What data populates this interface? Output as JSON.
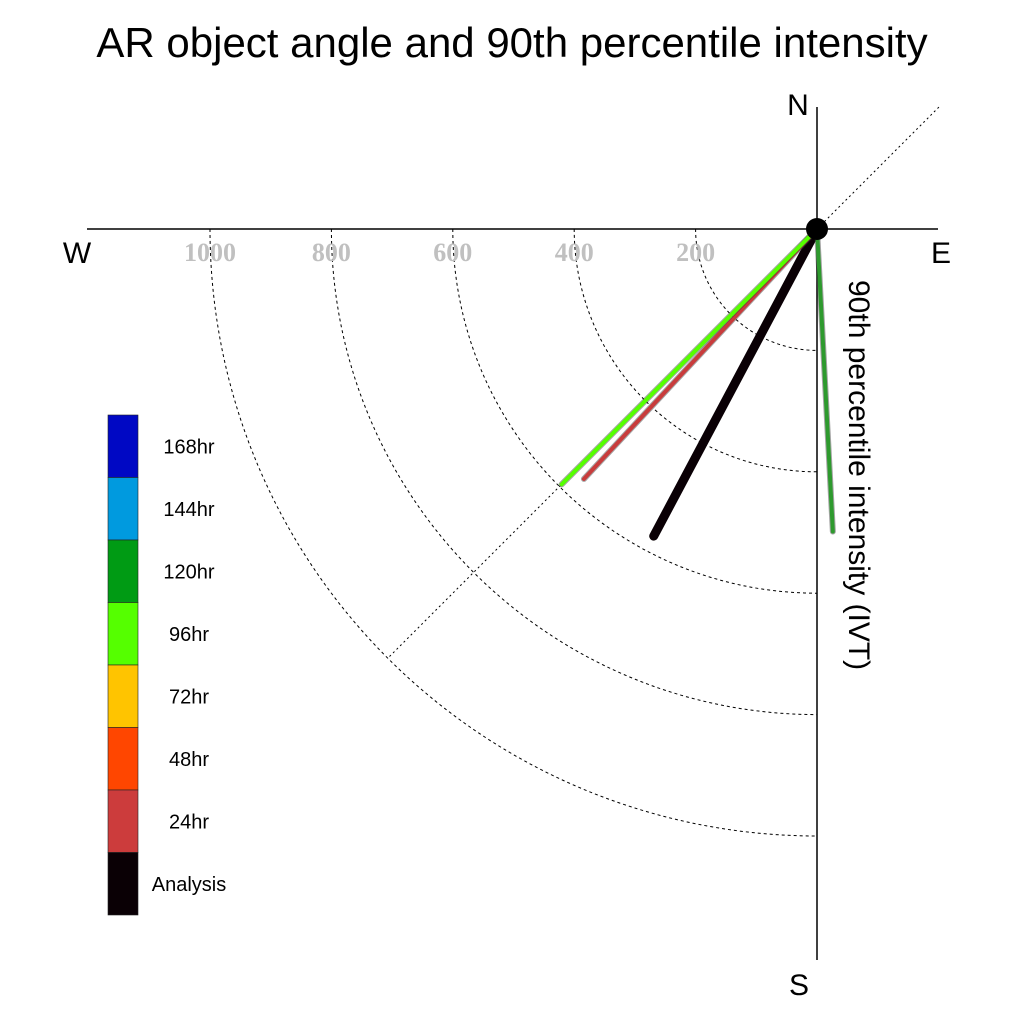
{
  "chart_data": {
    "type": "polar-vector",
    "title": "AR object angle and 90th percentile intensity",
    "ylabel": "90th percentile intensity (IVT)",
    "compass": {
      "north": "N",
      "south": "S",
      "east": "E",
      "west": "W"
    },
    "radial_ticks": [
      200,
      400,
      600,
      800,
      1000
    ],
    "radial_tick_labels": [
      "200",
      "400",
      "600",
      "800",
      "1000"
    ],
    "rmax": 1200,
    "grid": "dashed quarter circles in south-west quadrant, dotted NE-SW diagonal",
    "series": [
      {
        "name": "Analysis",
        "color": "#0a0005",
        "magnitude": 573,
        "angle_deg": 208
      },
      {
        "name": "24hr",
        "color": "#c83c3c",
        "magnitude": 563,
        "angle_deg": 223
      },
      {
        "name": "96hr",
        "color": "#55ff00",
        "magnitude": 595,
        "angle_deg": 225
      },
      {
        "name": "120hr",
        "color": "#2e9a2e",
        "magnitude": 499,
        "angle_deg": 177
      }
    ],
    "legend": {
      "placement": "left",
      "items": [
        {
          "label": "168hr",
          "color": "#0008c4"
        },
        {
          "label": "144hr",
          "color": "#009adf"
        },
        {
          "label": "120hr",
          "color": "#009b14"
        },
        {
          "label": "96hr",
          "color": "#55ff00"
        },
        {
          "label": "72hr",
          "color": "#ffc400"
        },
        {
          "label": "48hr",
          "color": "#ff4600"
        },
        {
          "label": "24hr",
          "color": "#cc3c3c"
        },
        {
          "label": "Analysis",
          "color": "#0a0005"
        }
      ]
    }
  }
}
